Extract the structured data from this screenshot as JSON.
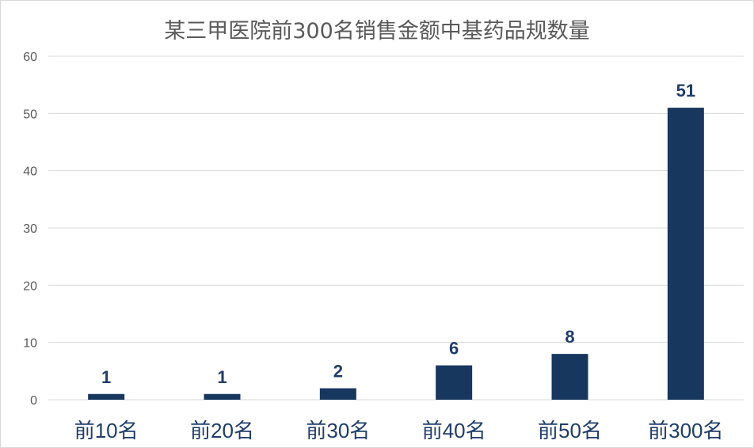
{
  "chart_data": {
    "type": "bar",
    "title": "某三甲医院前300名销售金额中基药品规数量",
    "categories": [
      "前10名",
      "前20名",
      "前30名",
      "前40名",
      "前50名",
      "前300名"
    ],
    "values": [
      1,
      1,
      2,
      6,
      8,
      51
    ],
    "ylim": [
      0,
      60
    ],
    "yticks": [
      0,
      10,
      20,
      30,
      40,
      50,
      60
    ],
    "xlabel": "",
    "ylabel": "",
    "grid": true,
    "legend": "none",
    "bar_color": "#17375e",
    "label_color": "#1f3d6b",
    "tick_color": "#595959",
    "category_color": "#1f3d6b",
    "gridline_color": "#d9d9d9"
  }
}
